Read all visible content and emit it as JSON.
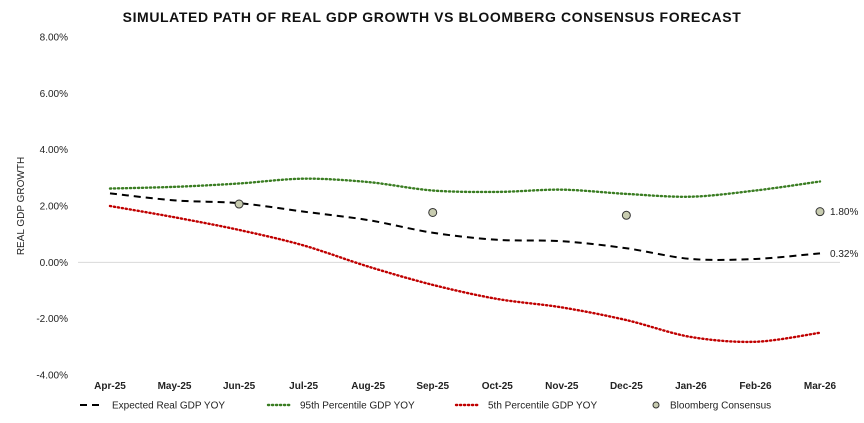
{
  "chart_data": {
    "type": "line",
    "title": "SIMULATED PATH OF REAL GDP GROWTH VS BLOOMBERG CONSENSUS FORECAST",
    "xlabel": "",
    "ylabel": "REAL GDP GROWTH",
    "ylim": [
      -4,
      8
    ],
    "yticks": [
      8,
      6,
      4,
      2,
      0,
      -2,
      -4
    ],
    "ytick_labels": [
      "8.00%",
      "6.00%",
      "4.00%",
      "2.00%",
      "0.00%",
      "-2.00%",
      "-4.00%"
    ],
    "categories": [
      "Apr-25",
      "May-25",
      "Jun-25",
      "Jul-25",
      "Aug-25",
      "Sep-25",
      "Oct-25",
      "Nov-25",
      "Dec-25",
      "Jan-26",
      "Feb-26",
      "Mar-26"
    ],
    "grid": false,
    "legend_position": "bottom",
    "series": [
      {
        "name": "Expected Real GDP YOY",
        "style": "dashed",
        "color": "#000000",
        "values": [
          2.45,
          2.2,
          2.1,
          1.8,
          1.5,
          1.05,
          0.8,
          0.75,
          0.5,
          0.12,
          0.12,
          0.32
        ]
      },
      {
        "name": "95th Percentile GDP YOY",
        "style": "dotted",
        "color": "#3a7d22",
        "values": [
          2.62,
          2.68,
          2.8,
          2.97,
          2.85,
          2.55,
          2.5,
          2.58,
          2.43,
          2.33,
          2.55,
          2.87
        ]
      },
      {
        "name": "5th Percentile GDP YOY",
        "style": "dotted",
        "color": "#c00000",
        "values": [
          2.0,
          1.6,
          1.15,
          0.6,
          -0.15,
          -0.8,
          -1.3,
          -1.6,
          -2.05,
          -2.65,
          -2.82,
          -2.5
        ]
      },
      {
        "name": "Bloomberg Consensus",
        "style": "markers",
        "color": "#c8ccb0",
        "points": [
          {
            "x": "Jun-25",
            "y": 2.07
          },
          {
            "x": "Sep-25",
            "y": 1.77
          },
          {
            "x": "Dec-25",
            "y": 1.67
          },
          {
            "x": "Mar-26",
            "y": 1.8
          }
        ]
      }
    ],
    "annotations": [
      {
        "text": "1.80%",
        "x": "Mar-26",
        "y": 1.8
      },
      {
        "text": "0.32%",
        "x": "Mar-26",
        "y": 0.32
      }
    ]
  }
}
